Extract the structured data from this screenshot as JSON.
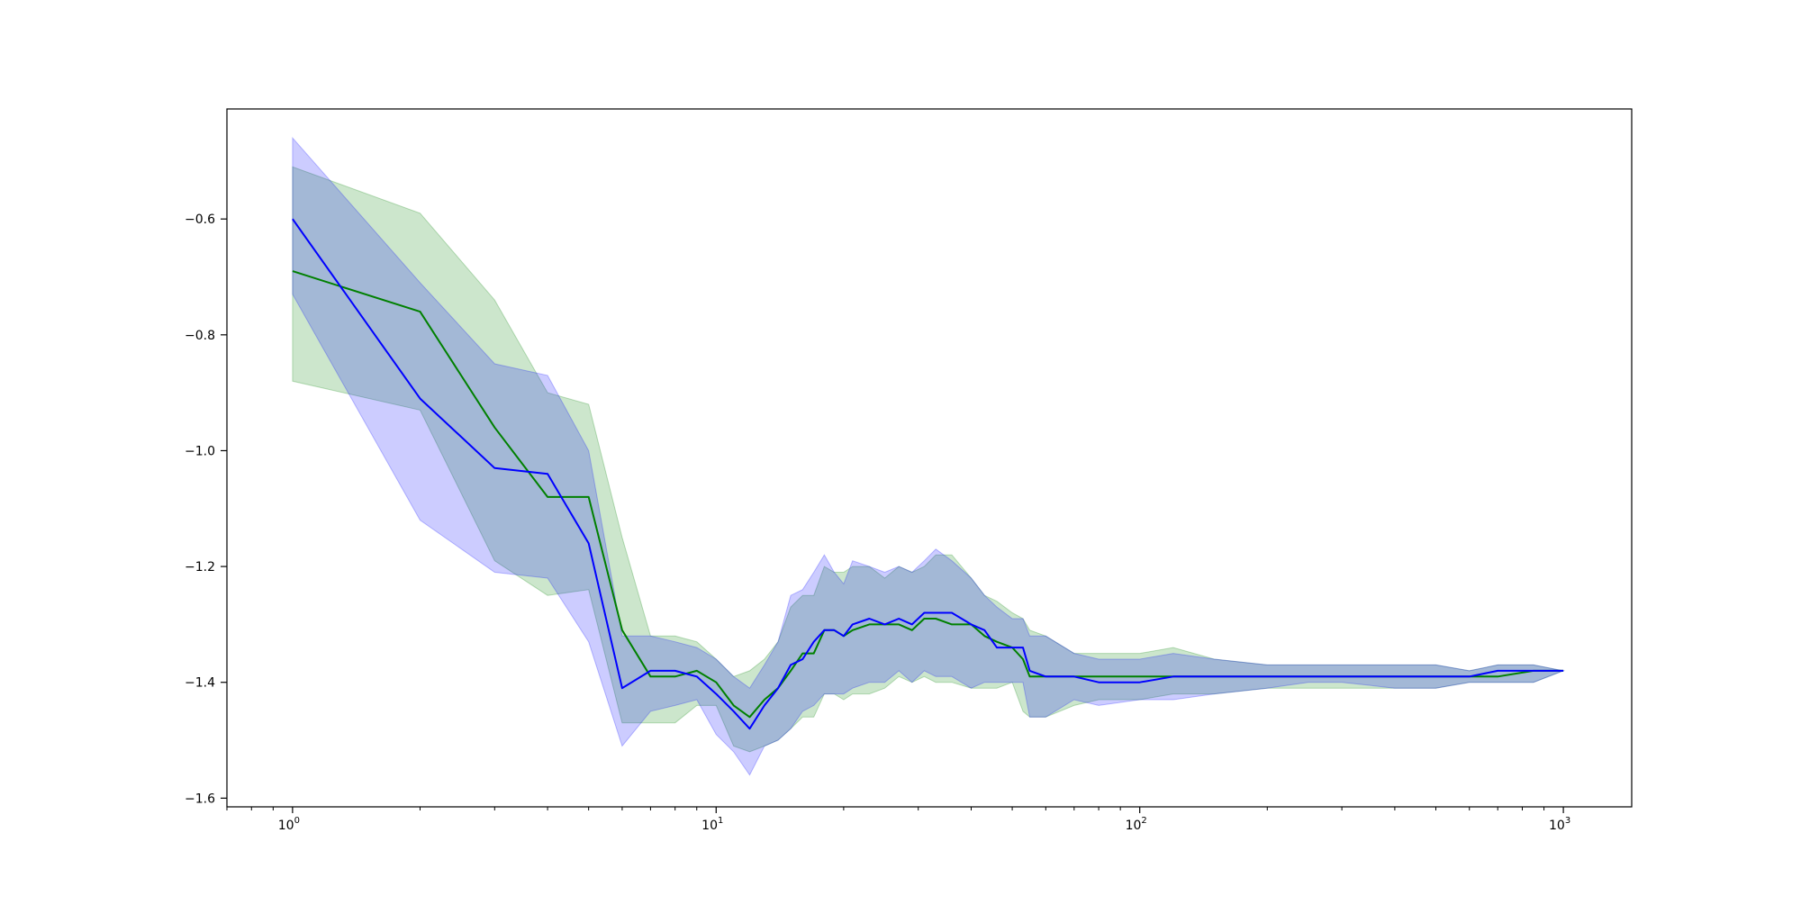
{
  "chart_data": {
    "type": "line",
    "title": "",
    "xlabel": "",
    "ylabel": "",
    "xscale": "log",
    "xlim": [
      0.7,
      1450
    ],
    "ylim": [
      -1.615,
      -0.41
    ],
    "x_ticks": [
      {
        "value": 1,
        "base": "10",
        "exp": "0"
      },
      {
        "value": 10,
        "base": "10",
        "exp": "1"
      },
      {
        "value": 100,
        "base": "10",
        "exp": "2"
      },
      {
        "value": 1000,
        "base": "10",
        "exp": "3"
      }
    ],
    "y_ticks": [
      {
        "value": -0.6,
        "label": "−0.6"
      },
      {
        "value": -0.8,
        "label": "−0.8"
      },
      {
        "value": -1.0,
        "label": "−1.0"
      },
      {
        "value": -1.2,
        "label": "−1.2"
      },
      {
        "value": -1.4,
        "label": "−1.4"
      },
      {
        "value": -1.6,
        "label": "−1.6"
      }
    ],
    "grid": false,
    "legend": "none",
    "series": [
      {
        "color": "#008000",
        "band_fill": "#008000",
        "band_opacity": 0.2,
        "points": [
          [
            1,
            -0.69,
            -0.51,
            -0.88
          ],
          [
            2,
            -0.76,
            -0.59,
            -0.93
          ],
          [
            3,
            -0.96,
            -0.74,
            -1.19
          ],
          [
            4,
            -1.08,
            -0.9,
            -1.25
          ],
          [
            5,
            -1.08,
            -0.92,
            -1.24
          ],
          [
            6,
            -1.31,
            -1.15,
            -1.47
          ],
          [
            7,
            -1.39,
            -1.32,
            -1.47
          ],
          [
            8,
            -1.39,
            -1.32,
            -1.47
          ],
          [
            9,
            -1.38,
            -1.33,
            -1.44
          ],
          [
            10,
            -1.4,
            -1.36,
            -1.44
          ],
          [
            11,
            -1.44,
            -1.39,
            -1.51
          ],
          [
            12,
            -1.46,
            -1.38,
            -1.52
          ],
          [
            13,
            -1.43,
            -1.36,
            -1.51
          ],
          [
            14,
            -1.41,
            -1.33,
            -1.5
          ],
          [
            15,
            -1.38,
            -1.27,
            -1.48
          ],
          [
            16,
            -1.35,
            -1.25,
            -1.46
          ],
          [
            17,
            -1.35,
            -1.25,
            -1.46
          ],
          [
            18,
            -1.31,
            -1.2,
            -1.42
          ],
          [
            19,
            -1.31,
            -1.21,
            -1.42
          ],
          [
            20,
            -1.32,
            -1.21,
            -1.43
          ],
          [
            21,
            -1.31,
            -1.2,
            -1.42
          ],
          [
            23,
            -1.3,
            -1.2,
            -1.42
          ],
          [
            25,
            -1.3,
            -1.22,
            -1.41
          ],
          [
            27,
            -1.3,
            -1.2,
            -1.39
          ],
          [
            29,
            -1.31,
            -1.21,
            -1.4
          ],
          [
            31,
            -1.29,
            -1.2,
            -1.39
          ],
          [
            33,
            -1.29,
            -1.18,
            -1.4
          ],
          [
            36,
            -1.3,
            -1.18,
            -1.4
          ],
          [
            40,
            -1.3,
            -1.22,
            -1.41
          ],
          [
            43,
            -1.32,
            -1.25,
            -1.41
          ],
          [
            46,
            -1.33,
            -1.26,
            -1.41
          ],
          [
            50,
            -1.34,
            -1.28,
            -1.4
          ],
          [
            53,
            -1.36,
            -1.29,
            -1.45
          ],
          [
            55,
            -1.39,
            -1.31,
            -1.46
          ],
          [
            60,
            -1.39,
            -1.32,
            -1.46
          ],
          [
            70,
            -1.39,
            -1.35,
            -1.44
          ],
          [
            80,
            -1.39,
            -1.35,
            -1.43
          ],
          [
            100,
            -1.39,
            -1.35,
            -1.43
          ],
          [
            120,
            -1.39,
            -1.34,
            -1.42
          ],
          [
            150,
            -1.39,
            -1.36,
            -1.42
          ],
          [
            200,
            -1.39,
            -1.37,
            -1.41
          ],
          [
            250,
            -1.39,
            -1.37,
            -1.41
          ],
          [
            300,
            -1.39,
            -1.37,
            -1.41
          ],
          [
            400,
            -1.39,
            -1.37,
            -1.41
          ],
          [
            500,
            -1.39,
            -1.37,
            -1.41
          ],
          [
            600,
            -1.39,
            -1.38,
            -1.4
          ],
          [
            700,
            -1.39,
            -1.37,
            -1.4
          ],
          [
            850,
            -1.38,
            -1.37,
            -1.4
          ],
          [
            1000,
            -1.38,
            -1.38,
            -1.38
          ]
        ]
      },
      {
        "color": "#0000ff",
        "band_fill": "#0000ff",
        "band_opacity": 0.2,
        "points": [
          [
            1,
            -0.6,
            -0.46,
            -0.73
          ],
          [
            2,
            -0.91,
            -0.71,
            -1.12
          ],
          [
            3,
            -1.03,
            -0.85,
            -1.21
          ],
          [
            4,
            -1.04,
            -0.87,
            -1.22
          ],
          [
            5,
            -1.16,
            -1.0,
            -1.33
          ],
          [
            6,
            -1.41,
            -1.32,
            -1.51
          ],
          [
            7,
            -1.38,
            -1.32,
            -1.45
          ],
          [
            8,
            -1.38,
            -1.33,
            -1.44
          ],
          [
            9,
            -1.39,
            -1.34,
            -1.43
          ],
          [
            10,
            -1.42,
            -1.36,
            -1.49
          ],
          [
            11,
            -1.45,
            -1.39,
            -1.52
          ],
          [
            12,
            -1.48,
            -1.41,
            -1.56
          ],
          [
            13,
            -1.44,
            -1.37,
            -1.51
          ],
          [
            14,
            -1.41,
            -1.33,
            -1.5
          ],
          [
            15,
            -1.37,
            -1.25,
            -1.48
          ],
          [
            16,
            -1.36,
            -1.24,
            -1.45
          ],
          [
            17,
            -1.33,
            -1.21,
            -1.44
          ],
          [
            18,
            -1.31,
            -1.18,
            -1.42
          ],
          [
            19,
            -1.31,
            -1.21,
            -1.42
          ],
          [
            20,
            -1.32,
            -1.23,
            -1.42
          ],
          [
            21,
            -1.3,
            -1.19,
            -1.41
          ],
          [
            23,
            -1.29,
            -1.2,
            -1.4
          ],
          [
            25,
            -1.3,
            -1.21,
            -1.4
          ],
          [
            27,
            -1.29,
            -1.2,
            -1.38
          ],
          [
            29,
            -1.3,
            -1.21,
            -1.4
          ],
          [
            31,
            -1.28,
            -1.19,
            -1.38
          ],
          [
            33,
            -1.28,
            -1.17,
            -1.39
          ],
          [
            36,
            -1.28,
            -1.19,
            -1.39
          ],
          [
            40,
            -1.3,
            -1.22,
            -1.41
          ],
          [
            43,
            -1.31,
            -1.25,
            -1.4
          ],
          [
            46,
            -1.34,
            -1.27,
            -1.4
          ],
          [
            50,
            -1.34,
            -1.29,
            -1.4
          ],
          [
            53,
            -1.34,
            -1.29,
            -1.4
          ],
          [
            55,
            -1.38,
            -1.32,
            -1.46
          ],
          [
            60,
            -1.39,
            -1.32,
            -1.46
          ],
          [
            70,
            -1.39,
            -1.35,
            -1.43
          ],
          [
            80,
            -1.4,
            -1.36,
            -1.44
          ],
          [
            100,
            -1.4,
            -1.36,
            -1.43
          ],
          [
            120,
            -1.39,
            -1.35,
            -1.43
          ],
          [
            150,
            -1.39,
            -1.36,
            -1.42
          ],
          [
            200,
            -1.39,
            -1.37,
            -1.41
          ],
          [
            250,
            -1.39,
            -1.37,
            -1.4
          ],
          [
            300,
            -1.39,
            -1.37,
            -1.4
          ],
          [
            400,
            -1.39,
            -1.37,
            -1.41
          ],
          [
            500,
            -1.39,
            -1.37,
            -1.41
          ],
          [
            600,
            -1.39,
            -1.38,
            -1.4
          ],
          [
            700,
            -1.38,
            -1.37,
            -1.4
          ],
          [
            850,
            -1.38,
            -1.37,
            -1.4
          ],
          [
            1000,
            -1.38,
            -1.38,
            -1.38
          ]
        ]
      }
    ]
  }
}
